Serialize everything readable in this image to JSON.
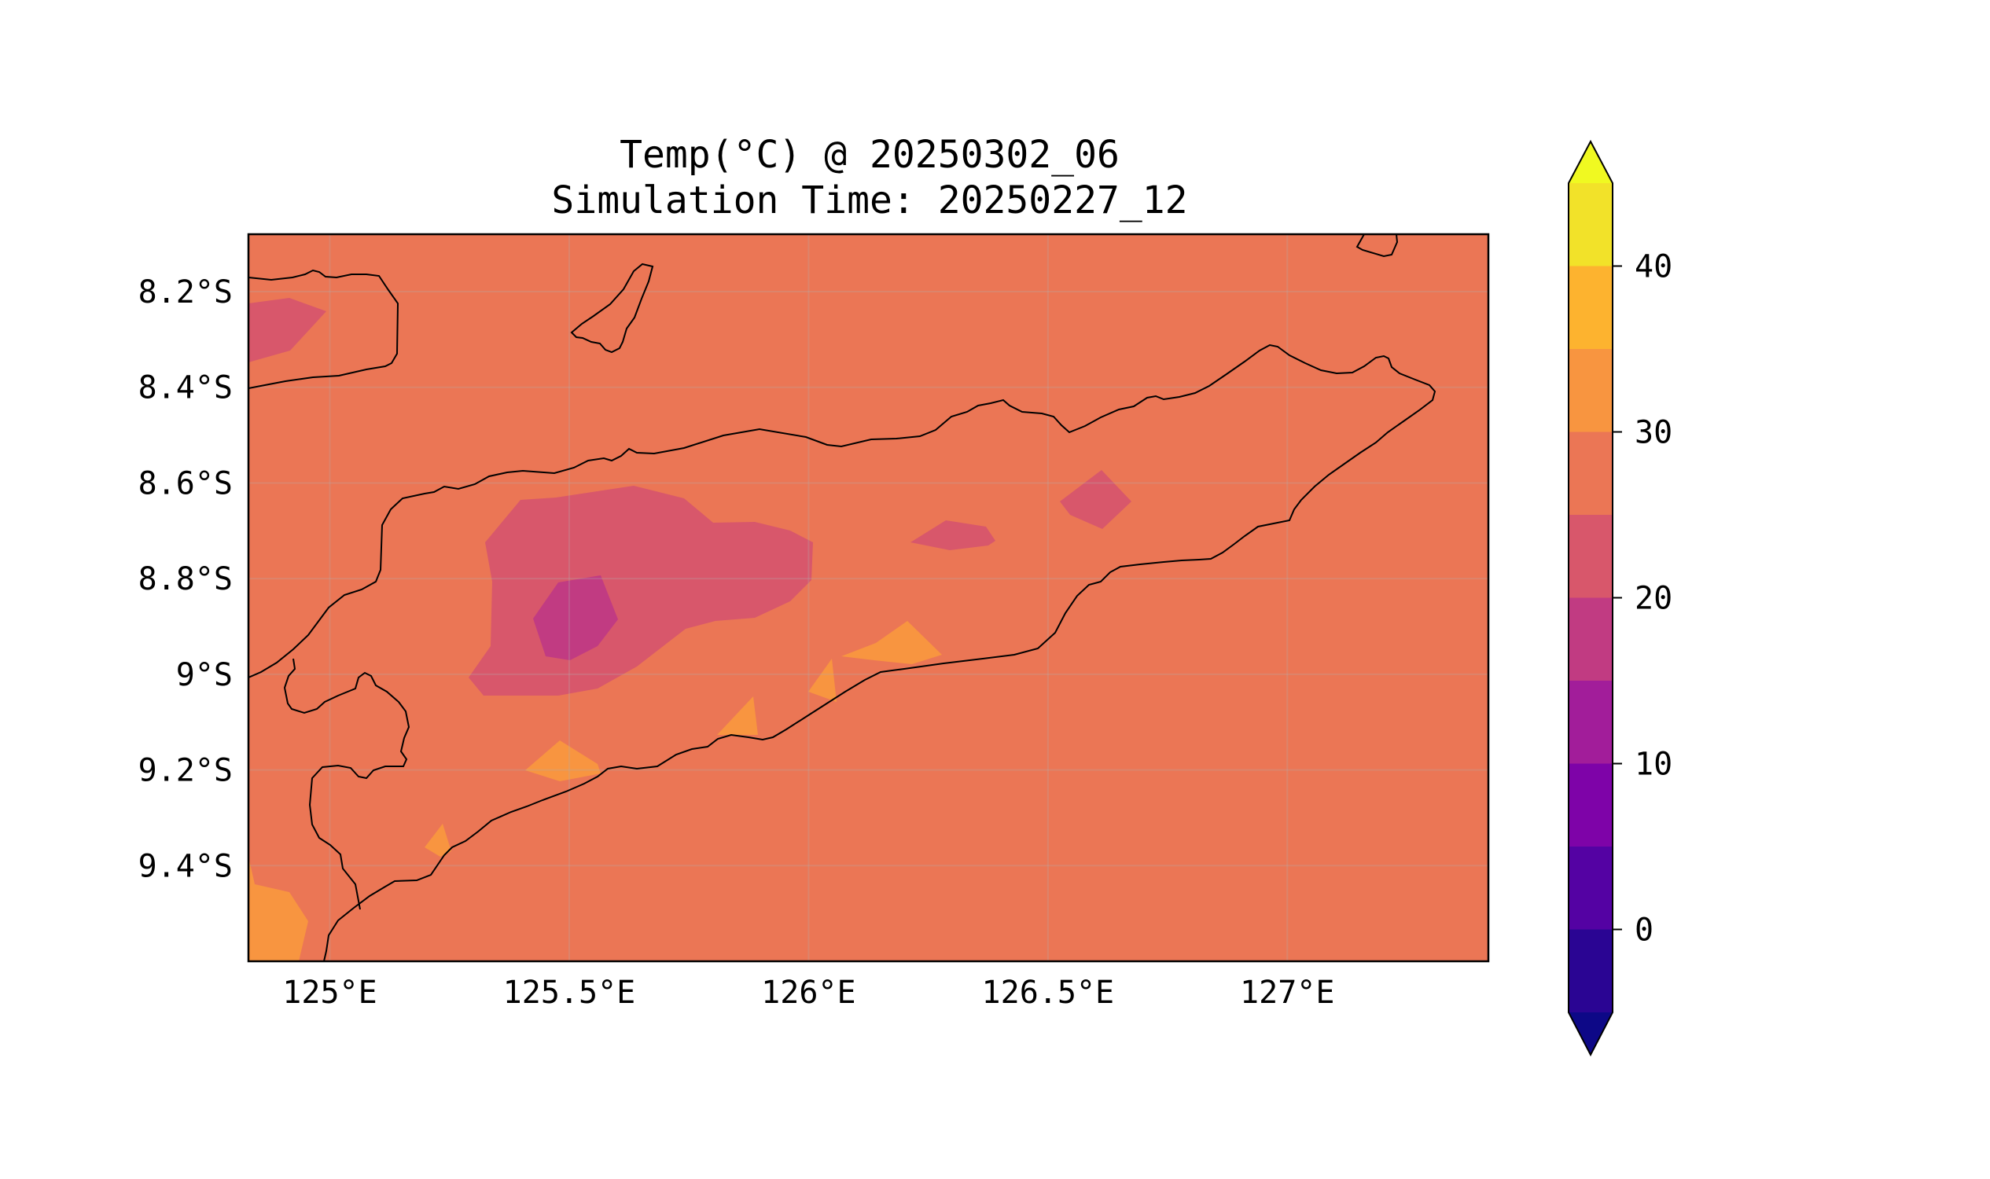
{
  "title": {
    "line1": "Temp(°C) @ 20250302_06",
    "line2": "Simulation Time: 20250227_12"
  },
  "map": {
    "region": "Timor",
    "lon_range": [
      124.83,
      127.42
    ],
    "lat_range": [
      -9.6,
      -8.08
    ],
    "x_ticks": [
      "125°E",
      "125.5°E",
      "126°E",
      "126.5°E",
      "127°E"
    ],
    "x_tick_values": [
      125,
      125.5,
      126,
      126.5,
      127
    ],
    "y_ticks": [
      "8.2°S",
      "8.4°S",
      "8.6°S",
      "8.8°S",
      "9°S",
      "9.2°S",
      "9.4°S"
    ],
    "y_tick_values": [
      -8.2,
      -8.4,
      -8.6,
      -8.8,
      -9.0,
      -9.2,
      -9.4
    ],
    "background_level": "25–30",
    "grid": true
  },
  "colorbar": {
    "tick_labels": [
      "0",
      "10",
      "20",
      "30",
      "40"
    ],
    "tick_values": [
      0,
      10,
      20,
      30,
      40
    ],
    "levels": [
      -5,
      0,
      5,
      10,
      15,
      20,
      25,
      30,
      35,
      40,
      45
    ],
    "under_color": "#0d0887",
    "over_color": "#f0f921",
    "colors": [
      "#2a0593",
      "#5402a3",
      "#7e03a8",
      "#a21d9a",
      "#c13b82",
      "#d8576b",
      "#eb7655",
      "#f89540",
      "#fdb32f",
      "#f2e229"
    ],
    "extend": "both"
  },
  "colors": {
    "c20_25": "#d8576b",
    "c25_30": "#eb7655",
    "c30_35": "#f89540",
    "c15_20": "#c13b82"
  }
}
